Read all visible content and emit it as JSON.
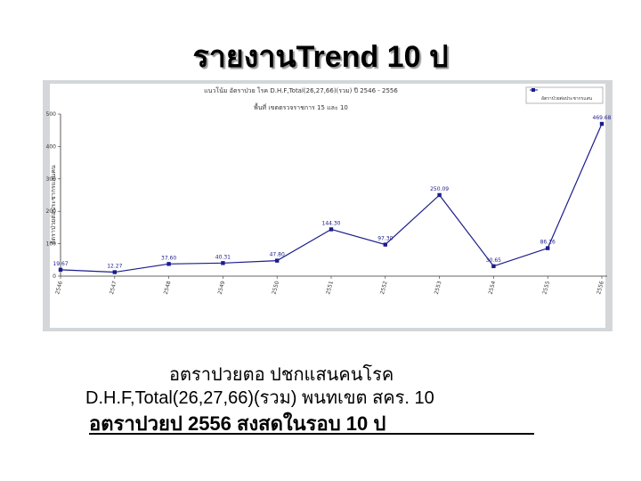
{
  "slide": {
    "title": "รายงานTrend 10 ป",
    "caption_line1": "อตราปวยตอ     ปชกแสนคนโรค",
    "caption_line2": "D.H.F,Total(26,27,66)(รวม) พนทเขต              สคร. 10",
    "caption_line3": "อตราปวยป       2556 สงสดในรอบ      10 ป"
  },
  "chart_data": {
    "type": "line",
    "title": "แนวโน้ม อัตราป่วย โรค D.H.F,Total(26,27,66)(รวม)  ปี 2546 - 2556",
    "subtitle": "พื้นที่ เขตตรวจราชการ 15 และ 10",
    "ylabel": "อัตราป่วยต่อประชากรแสนคน",
    "xlabel": "",
    "categories": [
      "2546",
      "2547",
      "2548",
      "2549",
      "2550",
      "2551",
      "2552",
      "2553",
      "2554",
      "2555",
      "2556"
    ],
    "series": [
      {
        "name": "อัตราป่วยต่อประชากรแสน",
        "values": [
          19.67,
          12.27,
          37.6,
          40.31,
          47.8,
          144.3,
          97.3,
          250.09,
          30.65,
          86.16,
          469.68
        ],
        "labels": [
          "19.67",
          "12.27",
          "37.60",
          "40.31",
          "47.80",
          "144.30",
          "97.30",
          "250.09",
          "30.65",
          "86.16",
          "469.68"
        ]
      }
    ],
    "yticks": [
      "500",
      "400",
      "300",
      "200",
      "100",
      "0"
    ],
    "ylim": [
      0,
      500
    ],
    "grid": false,
    "legend": "top-right",
    "colors": {
      "line": "#1c1c8c",
      "marker": "#1c1c8c",
      "plot_background": "#ffffff",
      "frame_background": "#d4d7d9"
    }
  }
}
